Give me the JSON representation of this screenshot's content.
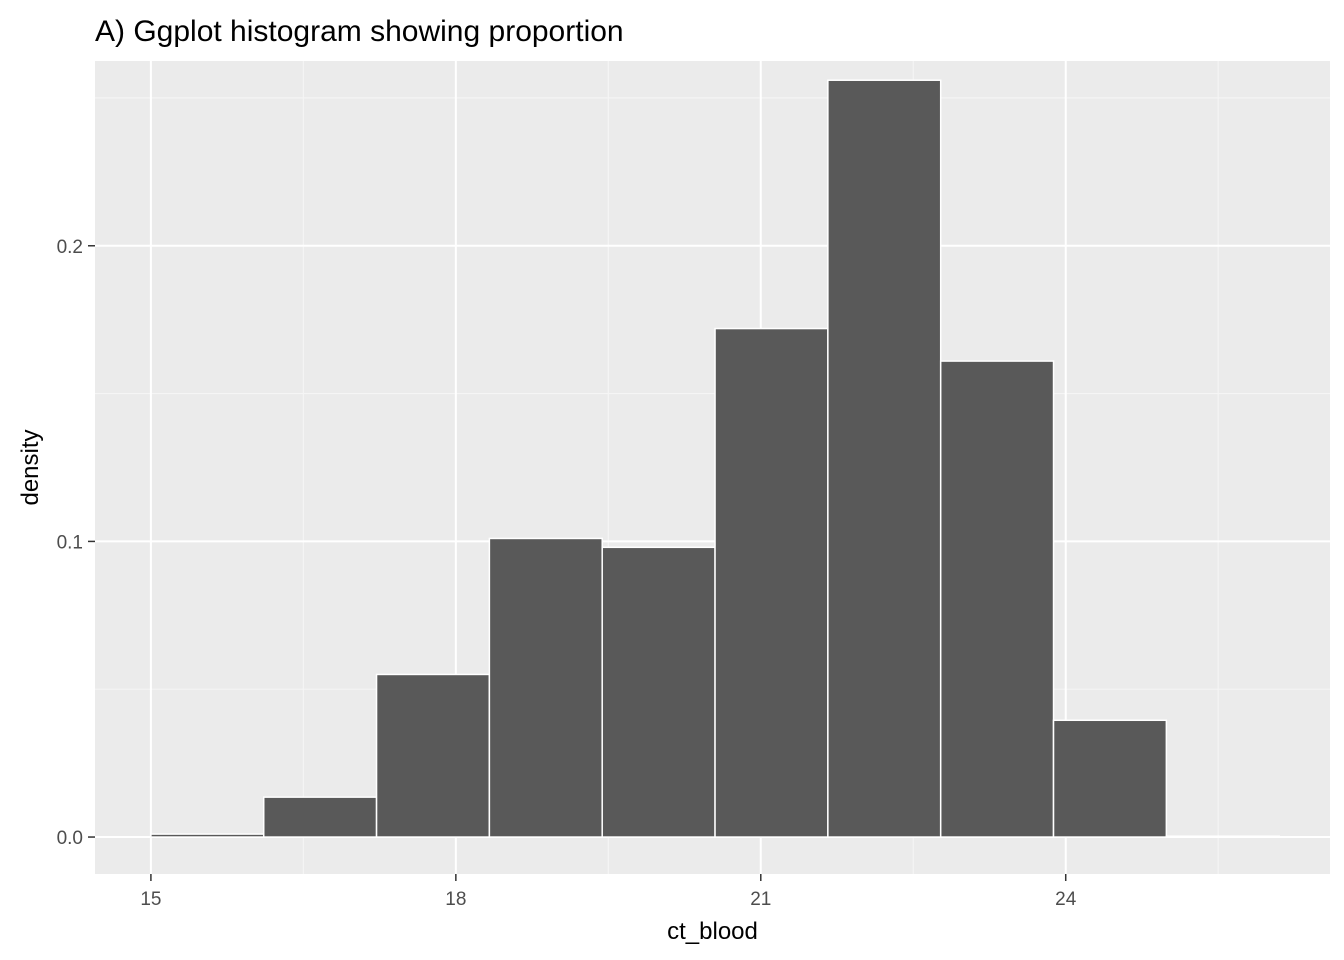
{
  "chart_data": {
    "type": "bar",
    "title": "A) Ggplot histogram showing proportion",
    "xlabel": "ct_blood",
    "ylabel": "density",
    "xlim": [
      14.45,
      26.6
    ],
    "ylim": [
      -0.0125,
      0.2625
    ],
    "x_ticks": [
      15,
      18,
      21,
      24
    ],
    "x_tick_labels": [
      "15",
      "18",
      "21",
      "24"
    ],
    "y_ticks": [
      0.0,
      0.1,
      0.2
    ],
    "y_tick_labels": [
      "0.0",
      "0.1",
      "0.2"
    ],
    "grid": true,
    "bin_width": 1.11,
    "bins": [
      {
        "x_start": 15.0,
        "x_end": 16.11,
        "density": 0.001
      },
      {
        "x_start": 16.11,
        "x_end": 17.22,
        "density": 0.0135
      },
      {
        "x_start": 17.22,
        "x_end": 18.33,
        "density": 0.055
      },
      {
        "x_start": 18.33,
        "x_end": 19.44,
        "density": 0.101
      },
      {
        "x_start": 19.44,
        "x_end": 20.55,
        "density": 0.098
      },
      {
        "x_start": 20.55,
        "x_end": 21.66,
        "density": 0.172
      },
      {
        "x_start": 21.66,
        "x_end": 22.77,
        "density": 0.256
      },
      {
        "x_start": 22.77,
        "x_end": 23.88,
        "density": 0.161
      },
      {
        "x_start": 23.88,
        "x_end": 24.99,
        "density": 0.0395
      },
      {
        "x_start": 24.99,
        "x_end": 26.1,
        "density": 0.0003
      }
    ]
  },
  "colors": {
    "panel_background": "#ebebeb",
    "grid_major": "#ffffff",
    "grid_minor": "#f5f5f5",
    "bar_fill": "#595959",
    "bar_outline": "#ffffff",
    "tick_mark": "#333333",
    "tick_text": "#4d4d4d"
  }
}
